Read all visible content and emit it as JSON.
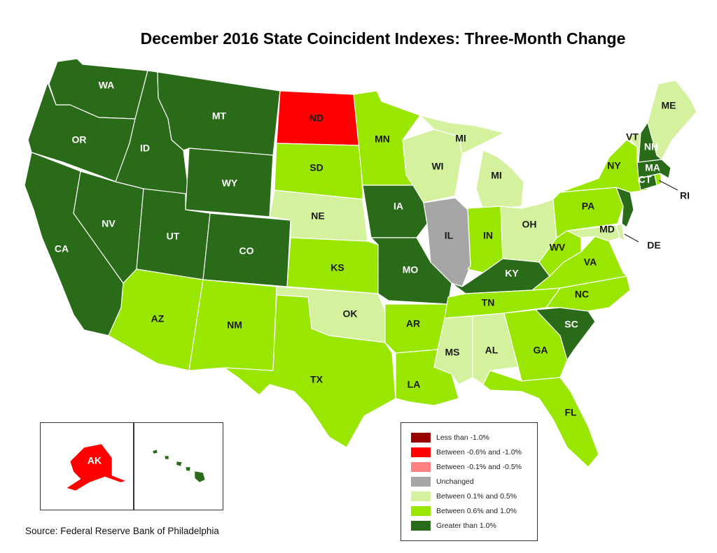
{
  "title": "December 2016 State Coincident Indexes: Three-Month Change",
  "source": "Source: Federal Reserve Bank of Philadelphia",
  "categories": {
    "lt1": {
      "label": "Less than -1.0%",
      "color": "#990000"
    },
    "neg06_10": {
      "label": "Between -0.6% and -1.0%",
      "color": "#ff0000"
    },
    "neg01_05": {
      "label": "Between -0.1% and -0.5%",
      "color": "#ff8080"
    },
    "unch": {
      "label": "Unchanged",
      "color": "#a6a6a6"
    },
    "p01_05": {
      "label": "Between 0.1% and 0.5%",
      "color": "#d4f29e"
    },
    "p06_10": {
      "label": "Between 0.6% and 1.0%",
      "color": "#99e600"
    },
    "gt1": {
      "label": "Greater than 1.0%",
      "color": "#2a6b1a"
    }
  },
  "legend_order": [
    "lt1",
    "neg06_10",
    "neg01_05",
    "unch",
    "p01_05",
    "p06_10",
    "gt1"
  ],
  "states": {
    "WA": "gt1",
    "OR": "gt1",
    "CA": "gt1",
    "ID": "gt1",
    "NV": "gt1",
    "MT": "gt1",
    "WY": "gt1",
    "UT": "gt1",
    "CO": "gt1",
    "AZ": "p06_10",
    "NM": "p06_10",
    "ND": "neg06_10",
    "SD": "p06_10",
    "NE": "p01_05",
    "KS": "p06_10",
    "OK": "p01_05",
    "TX": "p06_10",
    "MN": "p06_10",
    "IA": "gt1",
    "MO": "gt1",
    "AR": "p06_10",
    "LA": "p06_10",
    "WI": "p01_05",
    "IL": "unch",
    "MI": "p01_05",
    "IN": "p06_10",
    "OH": "p01_05",
    "KY": "gt1",
    "TN": "p06_10",
    "MS": "p01_05",
    "AL": "p01_05",
    "GA": "p06_10",
    "FL": "p06_10",
    "SC": "gt1",
    "NC": "p06_10",
    "VA": "p06_10",
    "WV": "p06_10",
    "PA": "p06_10",
    "NY": "p06_10",
    "ME": "p01_05",
    "VT": "p01_05",
    "NH": "gt1",
    "MA": "gt1",
    "RI": "p06_10",
    "CT": "gt1",
    "NJ": "gt1",
    "DE": "p01_05",
    "MD": "p01_05",
    "AK": "neg06_10",
    "HI": "gt1"
  }
}
